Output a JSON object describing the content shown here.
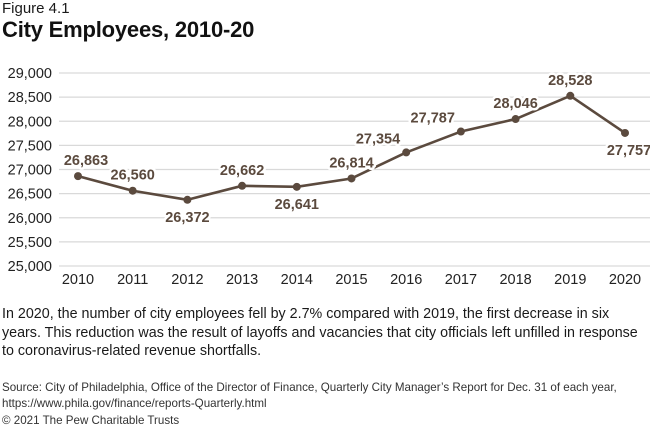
{
  "figure_label": "Figure 4.1",
  "title": "City Employees, 2010-20",
  "caption": "In 2020, the number of city employees fell by 2.7% compared with 2019, the first decrease in six years. This reduction was the result of layoffs and vacancies that city officials left unfilled in response to coronavirus-related revenue shortfalls.",
  "source": "Source: City of Philadelphia, Office of the Director of Finance, Quarterly City Manager’s Report for Dec. 31 of each year, https://www.phila.gov/finance/reports-Quarterly.html",
  "copyright": "© 2021 The Pew Charitable Trusts",
  "colors": {
    "line": "#5b4a3e",
    "grid": "#d9d9d9",
    "label": "#5b4a3e"
  },
  "chart_data": {
    "type": "line",
    "title": "City Employees, 2010-20",
    "xlabel": "",
    "ylabel": "",
    "x": [
      "2010",
      "2011",
      "2012",
      "2013",
      "2014",
      "2015",
      "2016",
      "2017",
      "2018",
      "2019",
      "2020"
    ],
    "series": [
      {
        "name": "City employees",
        "values": [
          26863,
          26560,
          26372,
          26662,
          26641,
          26814,
          27354,
          27787,
          28046,
          28528,
          27757
        ]
      }
    ],
    "data_labels": [
      "26,863",
      "26,560",
      "26,372",
      "26,662",
      "26,641",
      "26,814",
      "27,354",
      "27,787",
      "28,046",
      "28,528",
      "27,757"
    ],
    "label_positions": [
      "above",
      "above",
      "below",
      "above",
      "below",
      "above",
      "above-left",
      "above-left",
      "above",
      "above",
      "below"
    ],
    "yticks": [
      25000,
      25500,
      26000,
      26500,
      27000,
      27500,
      28000,
      28500,
      29000
    ],
    "ytick_labels": [
      "25,000",
      "25,500",
      "26,000",
      "26,500",
      "27,000",
      "27,500",
      "28,000",
      "28,500",
      "29,000"
    ],
    "ylim": [
      25000,
      29000
    ],
    "grid": true,
    "legend": "none"
  }
}
